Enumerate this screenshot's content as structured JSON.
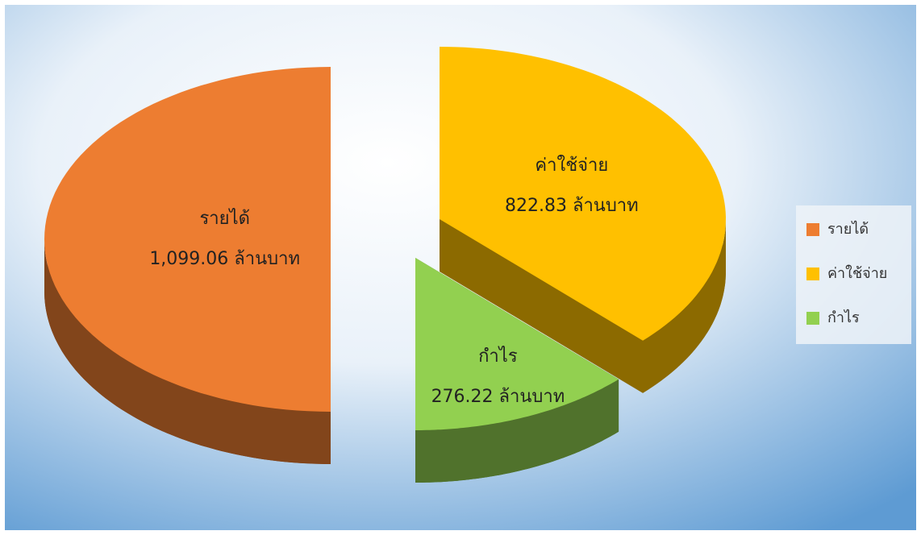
{
  "chart_data": {
    "type": "pie",
    "categories": [
      "รายได้",
      "ค่าใช้จ่าย",
      "กำไร"
    ],
    "values": [
      1099.06,
      822.83,
      276.22
    ],
    "value_labels": [
      "1,099.06 ล้านบาท",
      "822.83 ล้านบาท",
      "276.22 ล้านบาท"
    ],
    "colors": [
      "#ed7d31",
      "#ffc000",
      "#92d050"
    ],
    "legend": "right"
  }
}
